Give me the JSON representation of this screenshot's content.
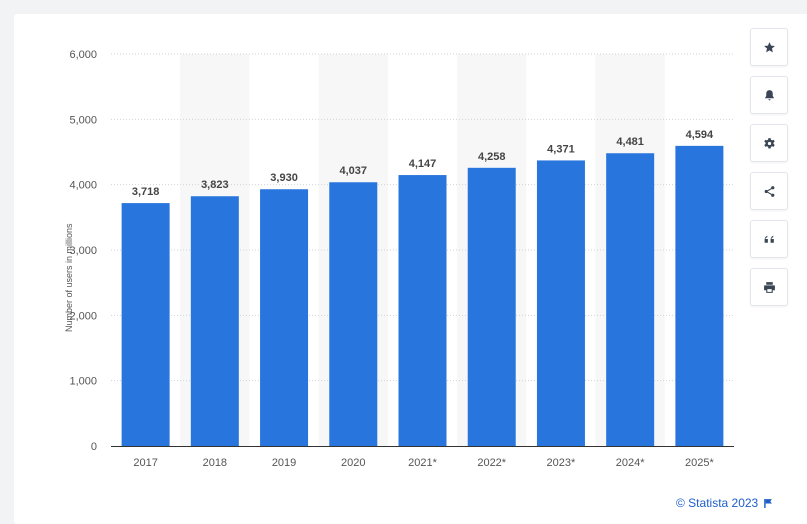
{
  "chart_data": {
    "type": "bar",
    "categories": [
      "2017",
      "2018",
      "2019",
      "2020",
      "2021*",
      "2022*",
      "2023*",
      "2024*",
      "2025*"
    ],
    "values": [
      3718,
      3823,
      3930,
      4037,
      4147,
      4258,
      4371,
      4481,
      4594
    ],
    "value_labels": [
      "3,718",
      "3,823",
      "3,930",
      "4,037",
      "4,147",
      "4,258",
      "4,371",
      "4,481",
      "4,594"
    ],
    "ylabel": "Number of users in millions",
    "xlabel": "",
    "ylim": [
      0,
      6000
    ],
    "yticks": [
      0,
      1000,
      2000,
      3000,
      4000,
      5000,
      6000
    ],
    "ytick_labels": [
      "0",
      "1,000",
      "2,000",
      "3,000",
      "4,000",
      "5,000",
      "6,000"
    ],
    "bar_color": "#2876dd",
    "grid": "dotted-horizontal",
    "legend": "none"
  },
  "toolbar": {
    "buttons": [
      {
        "name": "favorite",
        "icon": "star-icon"
      },
      {
        "name": "notification",
        "icon": "bell-icon"
      },
      {
        "name": "settings",
        "icon": "gear-icon"
      },
      {
        "name": "share",
        "icon": "share-icon"
      },
      {
        "name": "cite",
        "icon": "quote-icon"
      },
      {
        "name": "print",
        "icon": "print-icon"
      }
    ]
  },
  "credit": {
    "text": "© Statista 2023",
    "icon": "flag-icon",
    "color": "#1f5ec9"
  }
}
